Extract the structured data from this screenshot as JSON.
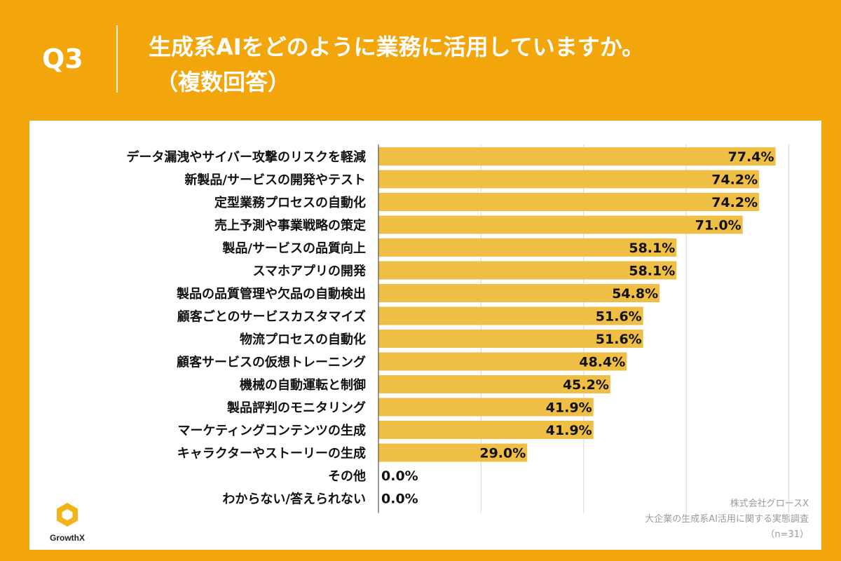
{
  "header": {
    "question": "Q3",
    "title_line1": "生成系AIをどのように業務に活用していますか。",
    "title_line2": "（複数回答）"
  },
  "colors": {
    "background": "#F2A60C",
    "bar": "#EFBE44",
    "grid": "#d9d9d9",
    "axis": "#555555"
  },
  "chart_data": {
    "type": "bar",
    "orientation": "horizontal",
    "categories": [
      "データ漏洩やサイバー攻撃のリスクを軽減",
      "新製品/サービスの開発やテスト",
      "定型業務プロセスの自動化",
      "売上予測や事業戦略の策定",
      "製品/サービスの品質向上",
      "スマホアプリの開発",
      "製品の品質管理や欠品の自動検出",
      "顧客ごとのサービスカスタマイズ",
      "物流プロセスの自動化",
      "顧客サービスの仮想トレーニング",
      "機械の自動運転と制御",
      "製品評判のモニタリング",
      "マーケティングコンテンツの生成",
      "キャラクターやストーリーの生成",
      "その他",
      "わからない/答えられない"
    ],
    "values": [
      77.4,
      74.2,
      74.2,
      71.0,
      58.1,
      58.1,
      54.8,
      51.6,
      51.6,
      48.4,
      45.2,
      41.9,
      41.9,
      29.0,
      0.0,
      0.0
    ],
    "value_labels": [
      "77.4%",
      "74.2%",
      "74.2%",
      "71.0%",
      "58.1%",
      "58.1%",
      "54.8%",
      "51.6%",
      "51.6%",
      "48.4%",
      "45.2%",
      "41.9%",
      "41.9%",
      "29.0%",
      "0.0%",
      "0.0%"
    ],
    "xlim": [
      0,
      80
    ],
    "grid_values": [
      0,
      20,
      40,
      60,
      80
    ],
    "title": "",
    "xlabel": "",
    "ylabel": ""
  },
  "footnote": {
    "line1": "株式会社グロースX",
    "line2": "大企業の生成系AI活用に関する実態調査",
    "line3": "（n=31）"
  },
  "logo": {
    "text": "GrowthX"
  }
}
